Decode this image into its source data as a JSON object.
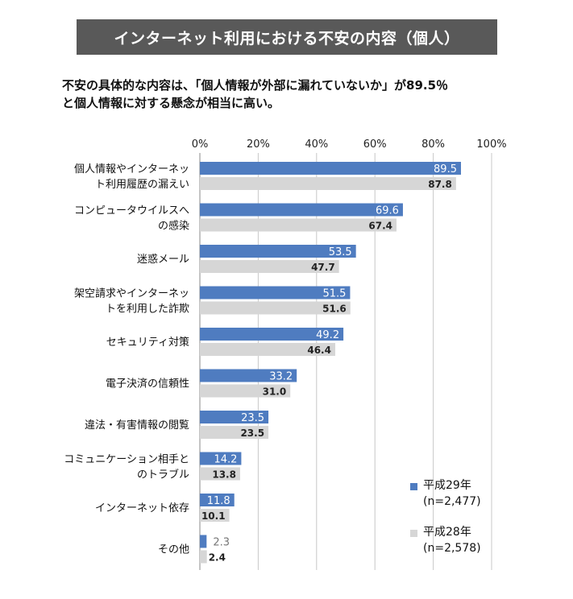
{
  "header": {
    "title": "インターネット利用における不安の内容（個人）",
    "subtitle_lines": [
      "不安の具体的な内容は、「個人情報が外部に漏れていないか」が89.5％",
      "と個人情報に対する懸念が相当に高い。"
    ]
  },
  "colors": {
    "series1": "#4f7cc0",
    "series2": "#d6d6d6",
    "grid": "#c8c8c8",
    "axis": "#888888"
  },
  "chart_data": {
    "type": "bar",
    "orientation": "horizontal",
    "xlim": [
      0,
      100
    ],
    "ticks": [
      "0%",
      "20%",
      "40%",
      "60%",
      "80%",
      "100%"
    ],
    "tick_values": [
      0,
      20,
      40,
      60,
      80,
      100
    ],
    "grid": true,
    "legend_position": "bottom-right",
    "categories": [
      [
        "個人情報やインターネッ",
        "ト利用履歴の漏えい"
      ],
      [
        "コンピュータウイルスへ",
        "の感染"
      ],
      [
        "迷惑メール"
      ],
      [
        "架空請求やインターネッ",
        "トを利用した詐欺"
      ],
      [
        "セキュリティ対策"
      ],
      [
        "電子決済の信頼性"
      ],
      [
        "違法・有害情報の閲覧"
      ],
      [
        "コミュニケーション相手と",
        "のトラブル"
      ],
      [
        "インターネット依存"
      ],
      [
        "その他"
      ]
    ],
    "series": [
      {
        "name": "平成29年",
        "legend_lines": [
          "平成29年",
          "(n=2,477)"
        ],
        "values": [
          89.5,
          69.6,
          53.5,
          51.5,
          49.2,
          33.2,
          23.5,
          14.2,
          11.8,
          2.3
        ],
        "labels": [
          "89.5",
          "69.6",
          "53.5",
          "51.5",
          "49.2",
          "33.2",
          "23.5",
          "14.2",
          "11.8",
          "2.3"
        ]
      },
      {
        "name": "平成28年",
        "legend_lines": [
          "平成28年",
          "(n=2,578)"
        ],
        "values": [
          87.8,
          67.4,
          47.7,
          51.6,
          46.4,
          31.0,
          23.5,
          13.8,
          10.1,
          2.4
        ],
        "labels": [
          "87.8",
          "67.4",
          "47.7",
          "51.6",
          "46.4",
          "31.0",
          "23.5",
          "13.8",
          "10.1",
          "2.4"
        ]
      }
    ]
  }
}
